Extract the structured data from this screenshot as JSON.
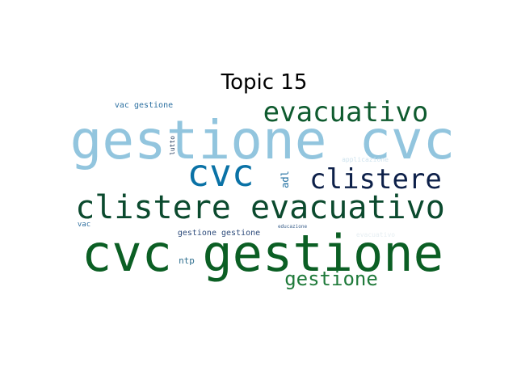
{
  "chart_data": {
    "type": "wordcloud",
    "title": "Topic 15",
    "words": [
      {
        "text": "gestione cvc",
        "color": "#92c5de"
      },
      {
        "text": "cvc gestione",
        "color": "#0b5f24"
      },
      {
        "text": "clistere evacuativo",
        "color": "#0b4a2e"
      },
      {
        "text": "evacuativo",
        "color": "#0f5b2f"
      },
      {
        "text": "cvc",
        "color": "#0a72a6"
      },
      {
        "text": "clistere",
        "color": "#0d2049"
      },
      {
        "text": "gestione",
        "color": "#1f7a3a"
      },
      {
        "text": "vac gestione",
        "color": "#2b6fa0"
      },
      {
        "text": "gestione gestione",
        "color": "#2c4a7a"
      },
      {
        "text": "ntp",
        "color": "#2f6f8f"
      },
      {
        "text": "adl",
        "color": "#1f6ea0"
      },
      {
        "text": "lutto",
        "color": "#243d5f"
      },
      {
        "text": "vac",
        "color": "#2d6e9e"
      },
      {
        "text": "educazione",
        "color": "#3a5f8a"
      },
      {
        "text": "applicazione",
        "color": "#cfe3ee"
      },
      {
        "text": "evacuativo",
        "color": "#e6eef2"
      }
    ]
  }
}
